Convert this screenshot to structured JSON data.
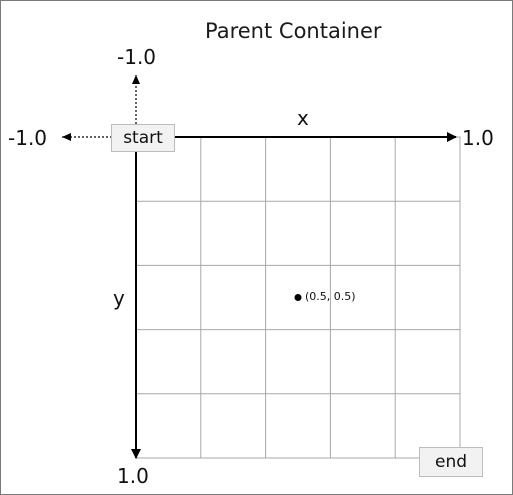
{
  "container": {
    "title": "Parent Container"
  },
  "axes": {
    "x_label": "x",
    "y_label": "y",
    "x_min_label": "-1.0",
    "x_max_label": "1.0",
    "y_min_label": "-1.0",
    "y_max_label": "1.0"
  },
  "markers": {
    "start": "start",
    "end": "end"
  },
  "grid": {
    "rows": 5,
    "cols": 5
  },
  "point": {
    "x": 0.5,
    "y": 0.5,
    "label": "(0.5, 0.5)"
  },
  "colors": {
    "grid_line": "#a8a8a8",
    "axis": "#000000",
    "badge_bg": "#f2f2f2"
  }
}
